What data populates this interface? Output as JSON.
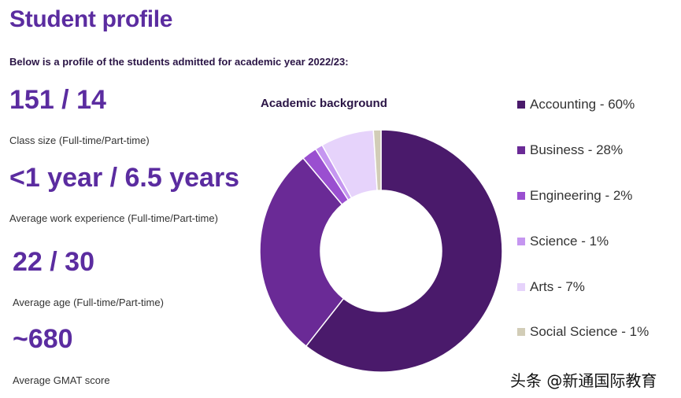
{
  "header": {
    "title": "Student profile",
    "subtitle": "Below is a profile of the students admitted for academic year 2022/23:"
  },
  "stats": [
    {
      "value": "151 / 14",
      "label": "Class size (Full-time/Part-time)"
    },
    {
      "value": "<1 year / 6.5 years",
      "label": "Average work experience (Full-time/Part-time)"
    },
    {
      "value": "22 / 30",
      "label": "Average age (Full-time/Part-time)"
    },
    {
      "value": "~680",
      "label": "Average GMAT score"
    }
  ],
  "chart_data": {
    "type": "pie",
    "variant": "donut",
    "title": "Academic background",
    "categories": [
      "Accounting",
      "Business",
      "Engineering",
      "Science",
      "Arts",
      "Social Science"
    ],
    "values": [
      60,
      28,
      2,
      1,
      7,
      1
    ],
    "unit": "%",
    "colors": [
      "#4a1a6b",
      "#6a2a96",
      "#9a4fd0",
      "#c596f0",
      "#e6d3fb",
      "#d2cdb7"
    ],
    "legend": [
      "Accounting - 60%",
      "Business - 28%",
      "Engineering - 2%",
      "Science - 1%",
      "Arts - 7%",
      "Social Science - 1%"
    ],
    "legend_position": "right"
  },
  "watermark": "头条 @新通国际教育"
}
